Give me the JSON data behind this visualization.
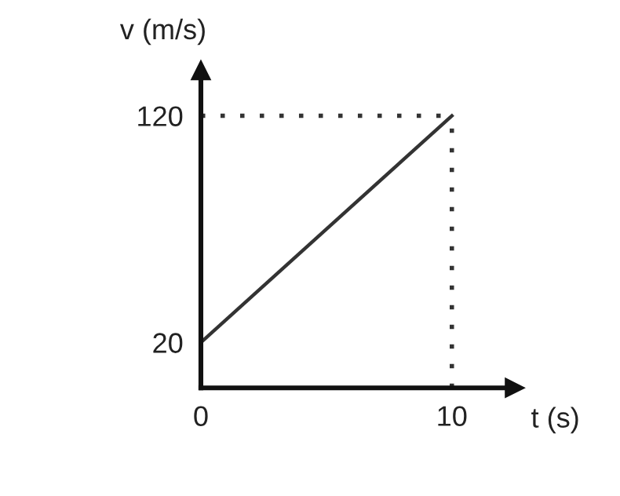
{
  "chart_data": {
    "type": "line",
    "xlabel": "t (s)",
    "ylabel": "v (m/s)",
    "x": [
      0,
      10
    ],
    "series": [
      {
        "color": "#333333",
        "values": [
          20,
          120
        ]
      }
    ],
    "xlim": [
      0,
      12.5
    ],
    "ylim": [
      0,
      140
    ],
    "xticks": [
      0,
      10
    ],
    "yticks": [
      20,
      120
    ],
    "marker": "none",
    "line_style": "solid",
    "ref_lines": [
      {
        "axis": "y",
        "value": 120,
        "color": "#333333",
        "line_style": "dotted"
      },
      {
        "axis": "x",
        "value": 10,
        "color": "#333333",
        "line_style": "dotted"
      }
    ]
  }
}
